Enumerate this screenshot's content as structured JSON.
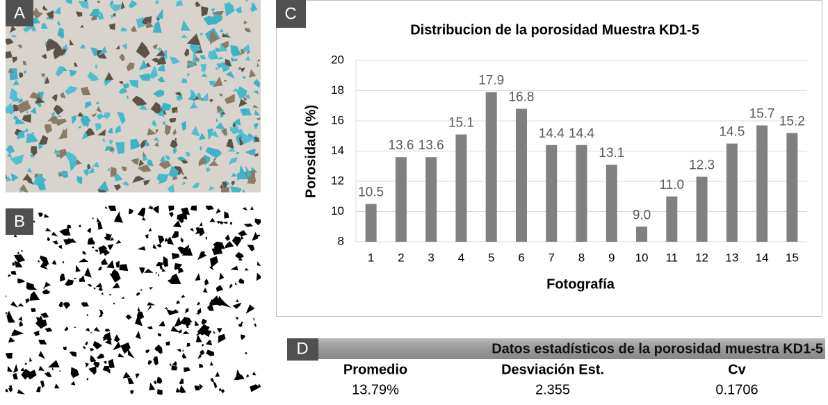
{
  "panel_labels": [
    "A",
    "B",
    "C",
    "D"
  ],
  "chart_data": {
    "type": "bar",
    "title": "Distribucion de la porosidad Muestra KD1-5",
    "x_label": "Fotografía",
    "y_label": "Porosidad (%)",
    "categories": [
      "1",
      "2",
      "3",
      "4",
      "5",
      "6",
      "7",
      "8",
      "9",
      "10",
      "11",
      "12",
      "13",
      "14",
      "15"
    ],
    "values": [
      10.5,
      13.6,
      13.6,
      15.1,
      17.9,
      16.8,
      14.4,
      14.4,
      13.1,
      9.0,
      11.0,
      12.3,
      14.5,
      15.7,
      15.2
    ],
    "value_labels": [
      "10.5",
      "13.6",
      "13.6",
      "15.1",
      "17.9",
      "16.8",
      "14.4",
      "14.4",
      "13.1",
      "9.0",
      "11.0",
      "12.3",
      "14.5",
      "15.7",
      "15.2"
    ],
    "color": "#808080",
    "ylim": [
      8,
      20
    ],
    "yticks": [
      8,
      10,
      12,
      14,
      16,
      18,
      20
    ],
    "grid": true
  },
  "table": {
    "title": "Datos estadísticos de la porosidad muestra KD1-5",
    "headers": [
      "Promedio",
      "Desviación Est.",
      "Cv"
    ],
    "rows": [
      [
        "13.79%",
        "2.355",
        "0.1706"
      ]
    ]
  }
}
